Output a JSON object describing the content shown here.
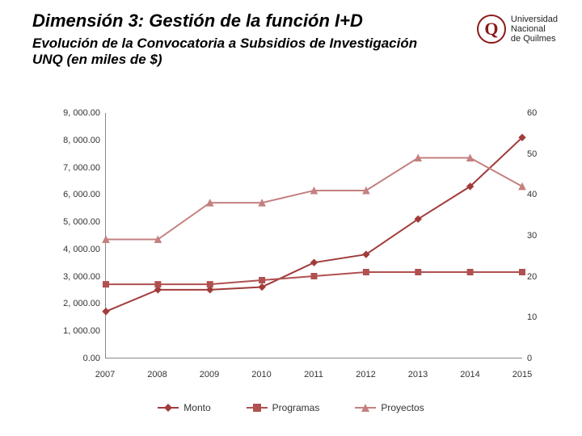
{
  "header": {
    "title": "Dimensión 3: Gestión de la función I+D",
    "subtitle": "Evolución de la Convocatoria a Subsidios de Investigación UNQ (en miles de $)",
    "logo_letter": "Q",
    "logo_text_l1": "Universidad",
    "logo_text_l2": "Nacional",
    "logo_text_l3": "de Quilmes"
  },
  "chart": {
    "type": "line",
    "background_color": "#ffffff",
    "x": {
      "categories": [
        "2007",
        "2008",
        "2009",
        "2010",
        "2011",
        "2012",
        "2013",
        "2014",
        "2015"
      ],
      "label_fontsize": 11
    },
    "y_left": {
      "min": 0,
      "max": 9000,
      "step": 1000,
      "tick_labels": [
        "0.00",
        "1, 000.00",
        "2, 000.00",
        "3, 000.00",
        "4, 000.00",
        "5, 000.00",
        "6, 000.00",
        "7, 000.00",
        "8, 000.00",
        "9, 000.00"
      ],
      "label_fontsize": 11
    },
    "y_right": {
      "min": 0,
      "max": 60,
      "step": 10,
      "tick_labels": [
        "0",
        "10",
        "20",
        "30",
        "40",
        "50",
        "60"
      ],
      "label_fontsize": 11
    },
    "series": [
      {
        "key": "monto",
        "label": "Monto",
        "axis": "left",
        "color": "#a23b3b",
        "marker": "diamond",
        "marker_size": 8,
        "line_width": 2,
        "values": [
          1700,
          2500,
          2500,
          2600,
          3500,
          3800,
          5100,
          6300,
          8100
        ]
      },
      {
        "key": "programas",
        "label": "Programas",
        "axis": "right",
        "color": "#b05050",
        "marker": "square",
        "marker_size": 7,
        "line_width": 2,
        "values": [
          18,
          18,
          18,
          19,
          20,
          21,
          21,
          21,
          21
        ]
      },
      {
        "key": "proyectos",
        "label": "Proyectos",
        "axis": "right",
        "color": "#c48080",
        "marker": "triangle",
        "marker_size": 8,
        "line_width": 2,
        "values": [
          29,
          29,
          38,
          38,
          41,
          41,
          49,
          49,
          42
        ]
      }
    ],
    "legend_fontsize": 12
  }
}
